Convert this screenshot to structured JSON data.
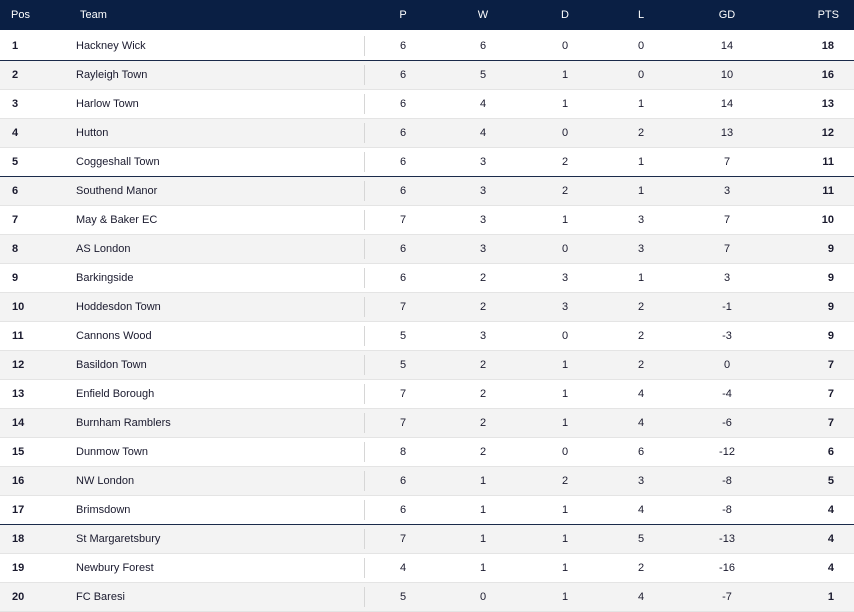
{
  "headers": {
    "pos": "Pos",
    "team": "Team",
    "p": "P",
    "w": "W",
    "d": "D",
    "l": "L",
    "gd": "GD",
    "pts": "PTS"
  },
  "rows": [
    {
      "pos": "1",
      "team": "Hackney Wick",
      "p": "6",
      "w": "6",
      "d": "0",
      "l": "0",
      "gd": "14",
      "pts": "18"
    },
    {
      "pos": "2",
      "team": "Rayleigh Town",
      "p": "6",
      "w": "5",
      "d": "1",
      "l": "0",
      "gd": "10",
      "pts": "16"
    },
    {
      "pos": "3",
      "team": "Harlow Town",
      "p": "6",
      "w": "4",
      "d": "1",
      "l": "1",
      "gd": "14",
      "pts": "13"
    },
    {
      "pos": "4",
      "team": "Hutton",
      "p": "6",
      "w": "4",
      "d": "0",
      "l": "2",
      "gd": "13",
      "pts": "12"
    },
    {
      "pos": "5",
      "team": "Coggeshall Town",
      "p": "6",
      "w": "3",
      "d": "2",
      "l": "1",
      "gd": "7",
      "pts": "11"
    },
    {
      "pos": "6",
      "team": "Southend Manor",
      "p": "6",
      "w": "3",
      "d": "2",
      "l": "1",
      "gd": "3",
      "pts": "11"
    },
    {
      "pos": "7",
      "team": "May & Baker EC",
      "p": "7",
      "w": "3",
      "d": "1",
      "l": "3",
      "gd": "7",
      "pts": "10"
    },
    {
      "pos": "8",
      "team": "AS London",
      "p": "6",
      "w": "3",
      "d": "0",
      "l": "3",
      "gd": "7",
      "pts": "9"
    },
    {
      "pos": "9",
      "team": "Barkingside",
      "p": "6",
      "w": "2",
      "d": "3",
      "l": "1",
      "gd": "3",
      "pts": "9"
    },
    {
      "pos": "10",
      "team": "Hoddesdon Town",
      "p": "7",
      "w": "2",
      "d": "3",
      "l": "2",
      "gd": "-1",
      "pts": "9"
    },
    {
      "pos": "11",
      "team": "Cannons Wood",
      "p": "5",
      "w": "3",
      "d": "0",
      "l": "2",
      "gd": "-3",
      "pts": "9"
    },
    {
      "pos": "12",
      "team": "Basildon Town",
      "p": "5",
      "w": "2",
      "d": "1",
      "l": "2",
      "gd": "0",
      "pts": "7"
    },
    {
      "pos": "13",
      "team": "Enfield Borough",
      "p": "7",
      "w": "2",
      "d": "1",
      "l": "4",
      "gd": "-4",
      "pts": "7"
    },
    {
      "pos": "14",
      "team": "Burnham Ramblers",
      "p": "7",
      "w": "2",
      "d": "1",
      "l": "4",
      "gd": "-6",
      "pts": "7"
    },
    {
      "pos": "15",
      "team": "Dunmow Town",
      "p": "8",
      "w": "2",
      "d": "0",
      "l": "6",
      "gd": "-12",
      "pts": "6"
    },
    {
      "pos": "16",
      "team": "NW London",
      "p": "6",
      "w": "1",
      "d": "2",
      "l": "3",
      "gd": "-8",
      "pts": "5"
    },
    {
      "pos": "17",
      "team": "Brimsdown",
      "p": "6",
      "w": "1",
      "d": "1",
      "l": "4",
      "gd": "-8",
      "pts": "4"
    },
    {
      "pos": "18",
      "team": "St Margaretsbury",
      "p": "7",
      "w": "1",
      "d": "1",
      "l": "5",
      "gd": "-13",
      "pts": "4"
    },
    {
      "pos": "19",
      "team": "Newbury Forest",
      "p": "4",
      "w": "1",
      "d": "1",
      "l": "2",
      "gd": "-16",
      "pts": "4"
    },
    {
      "pos": "20",
      "team": "FC Baresi",
      "p": "5",
      "w": "0",
      "d": "1",
      "l": "4",
      "gd": "-7",
      "pts": "1"
    }
  ]
}
